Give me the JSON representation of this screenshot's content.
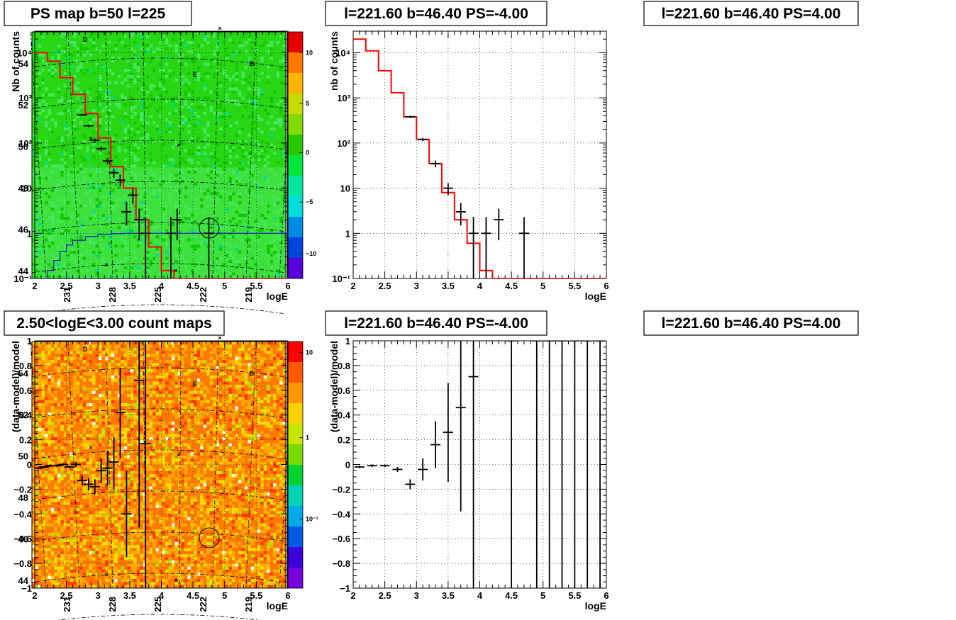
{
  "colors": {
    "model": "#ff0000",
    "data": "#000000",
    "ref": "#0000cc"
  },
  "chart_data": [
    {
      "type": "heatmap",
      "title": "PS map b=50 l=225",
      "x_ticks": [
        "231",
        "228",
        "225",
        "222",
        "219"
      ],
      "y_ticks": [
        "44",
        "46",
        "48",
        "50",
        "52",
        "54"
      ],
      "colorbar_ticks": [
        "10",
        "5",
        "0",
        "−5",
        "−10"
      ],
      "markers": [
        "D",
        "E",
        "B"
      ]
    },
    {
      "type": "line",
      "title": "l=221.60 b=46.40 PS=-4.00",
      "xlabel": "logE",
      "ylabel": "Nb of counts",
      "log_y": true,
      "xlim": [
        2,
        6
      ],
      "ylim": [
        0.1,
        30000
      ],
      "x_ticks": [
        "2",
        "2.5",
        "3",
        "3.5",
        "4",
        "4.5",
        "5",
        "5.5",
        "6"
      ],
      "y_ticks": [
        "10⁻¹",
        "1",
        "10",
        "10²",
        "10³",
        "10⁴"
      ],
      "series": [
        {
          "bins": [
            2.0,
            2.2,
            2.4,
            2.6,
            2.8,
            3.0,
            3.2,
            3.4,
            3.6,
            3.8,
            4.0,
            4.2,
            6.0
          ],
          "values": [
            10000,
            6500,
            2800,
            1200,
            450,
            130,
            30,
            10,
            2,
            0.5,
            0.15,
            0.1
          ]
        },
        {
          "x": [
            2.1,
            2.2,
            2.3,
            2.4,
            2.5,
            2.6,
            2.8,
            3.0,
            3.2,
            3.4,
            3.6,
            3.8,
            4.0,
            6.0
          ],
          "y": [
            0.1,
            0.15,
            0.25,
            0.4,
            0.55,
            0.7,
            0.85,
            0.95,
            0.98,
            1,
            1,
            1,
            1,
            1
          ]
        }
      ],
      "data_points": [
        {
          "x": 2.75,
          "y": 420,
          "lo": 400,
          "hi": 440
        },
        {
          "x": 2.85,
          "y": 240,
          "lo": 225,
          "hi": 255
        },
        {
          "x": 2.95,
          "y": 115,
          "lo": 105,
          "hi": 125
        },
        {
          "x": 3.05,
          "y": 75,
          "lo": 67,
          "hi": 84
        },
        {
          "x": 3.15,
          "y": 40,
          "lo": 34,
          "hi": 46
        },
        {
          "x": 3.25,
          "y": 22,
          "lo": 17,
          "hi": 27
        },
        {
          "x": 3.35,
          "y": 15,
          "lo": 11,
          "hi": 20
        },
        {
          "x": 3.45,
          "y": 3,
          "lo": 1.5,
          "hi": 5
        },
        {
          "x": 3.55,
          "y": 7,
          "lo": 4.5,
          "hi": 10
        },
        {
          "x": 3.65,
          "y": 2,
          "lo": 0.7,
          "hi": 3.5
        },
        {
          "x": 3.75,
          "y": 1,
          "lo": 0.1,
          "hi": 2.3
        },
        {
          "x": 4.15,
          "y": 1,
          "lo": 0.1,
          "hi": 2.3
        },
        {
          "x": 4.25,
          "y": 2,
          "lo": 0.7,
          "hi": 3.5
        },
        {
          "x": 4.75,
          "y": 1,
          "lo": 0.1,
          "hi": 2.3
        }
      ]
    },
    {
      "type": "line",
      "title": "l=221.60 b=46.40 PS=4.00",
      "xlabel": "logE",
      "ylabel": "nb of counts",
      "log_y": true,
      "xlim": [
        2,
        6
      ],
      "ylim": [
        0.1,
        30000
      ],
      "x_ticks": [
        "2",
        "2.5",
        "3",
        "3.5",
        "4",
        "4.5",
        "5",
        "5.5",
        "6"
      ],
      "y_ticks": [
        "10⁻¹",
        "1",
        "10",
        "10²",
        "10³",
        "10⁴"
      ],
      "series": [
        {
          "bins": [
            2.0,
            2.2,
            2.4,
            2.6,
            2.8,
            3.0,
            3.2,
            3.4,
            3.6,
            3.8,
            4.0,
            4.2,
            6.0
          ],
          "values": [
            20000,
            11000,
            4000,
            1300,
            380,
            120,
            35,
            8,
            2,
            0.6,
            0.15,
            0.1
          ]
        }
      ],
      "data_points": [
        {
          "x": 2.9,
          "y": 380,
          "lo": 360,
          "hi": 400
        },
        {
          "x": 3.1,
          "y": 120,
          "lo": 110,
          "hi": 130
        },
        {
          "x": 3.3,
          "y": 35,
          "lo": 29,
          "hi": 41
        },
        {
          "x": 3.5,
          "y": 10,
          "lo": 7,
          "hi": 13
        },
        {
          "x": 3.7,
          "y": 3,
          "lo": 1.5,
          "hi": 4.7
        },
        {
          "x": 3.9,
          "y": 1,
          "lo": 0.1,
          "hi": 2.3
        },
        {
          "x": 4.1,
          "y": 1,
          "lo": 0.1,
          "hi": 2.3
        },
        {
          "x": 4.3,
          "y": 2,
          "lo": 0.7,
          "hi": 3.5
        },
        {
          "x": 4.7,
          "y": 1,
          "lo": 0.1,
          "hi": 2.3
        }
      ]
    },
    {
      "type": "heatmap",
      "title": "2.50<logE<3.00 count maps",
      "x_ticks": [
        "231",
        "228",
        "225",
        "222",
        "219"
      ],
      "y_ticks": [
        "44",
        "46",
        "48",
        "50",
        "52",
        "54"
      ],
      "colorbar_ticks": [
        "10",
        "1",
        "10⁻¹"
      ],
      "markers": [
        "D",
        "E",
        "B"
      ]
    },
    {
      "type": "scatter",
      "title": "l=221.60 b=46.40 PS=-4.00",
      "xlabel": "logE",
      "ylabel": "(data-model)/model",
      "xlim": [
        2,
        6
      ],
      "ylim": [
        -1,
        1
      ],
      "x_ticks": [
        "2",
        "2.5",
        "3",
        "3.5",
        "4",
        "4.5",
        "5",
        "5.5",
        "6"
      ],
      "y_ticks": [
        "−1",
        "−0.8",
        "−0.6",
        "−0.4",
        "−0.2",
        "0",
        "0.2",
        "0.4",
        "0.6",
        "0.8",
        "1"
      ],
      "data_points": [
        {
          "x": 2.05,
          "y": -0.03,
          "lo": -0.04,
          "hi": -0.02
        },
        {
          "x": 2.15,
          "y": -0.02,
          "lo": -0.03,
          "hi": -0.01
        },
        {
          "x": 2.25,
          "y": -0.01,
          "lo": -0.02,
          "hi": 0.0
        },
        {
          "x": 2.35,
          "y": -0.01,
          "lo": -0.02,
          "hi": 0.0
        },
        {
          "x": 2.45,
          "y": 0.0,
          "lo": -0.01,
          "hi": 0.01
        },
        {
          "x": 2.55,
          "y": -0.02,
          "lo": -0.03,
          "hi": -0.01
        },
        {
          "x": 2.65,
          "y": 0.0,
          "lo": -0.02,
          "hi": 0.02
        },
        {
          "x": 2.75,
          "y": -0.13,
          "lo": -0.17,
          "hi": -0.09
        },
        {
          "x": 2.85,
          "y": -0.16,
          "lo": -0.21,
          "hi": -0.11
        },
        {
          "x": 2.95,
          "y": -0.18,
          "lo": -0.24,
          "hi": -0.12
        },
        {
          "x": 3.05,
          "y": -0.05,
          "lo": -0.15,
          "hi": 0.05
        },
        {
          "x": 3.15,
          "y": -0.03,
          "lo": -0.17,
          "hi": 0.11
        },
        {
          "x": 3.25,
          "y": 0.02,
          "lo": -0.2,
          "hi": 0.22
        },
        {
          "x": 3.35,
          "y": 0.42,
          "lo": 0.05,
          "hi": 0.78
        },
        {
          "x": 3.45,
          "y": -0.4,
          "lo": -0.75,
          "hi": -0.05
        },
        {
          "x": 3.65,
          "y": 0.68,
          "lo": -0.51,
          "hi": 1.0
        },
        {
          "x": 3.75,
          "y": 0.17,
          "lo": -1.0,
          "hi": 1.0
        }
      ]
    },
    {
      "type": "scatter",
      "title": "l=221.60 b=46.40 PS=4.00",
      "xlabel": "logE",
      "ylabel": "(data-model)/model",
      "xlim": [
        2,
        6
      ],
      "ylim": [
        -1,
        1
      ],
      "x_ticks": [
        "2",
        "2.5",
        "3",
        "3.5",
        "4",
        "4.5",
        "5",
        "5.5",
        "6"
      ],
      "y_ticks": [
        "−1",
        "−0.8",
        "−0.6",
        "−0.4",
        "−0.2",
        "0",
        "0.2",
        "0.4",
        "0.6",
        "0.8",
        "1"
      ],
      "data_points": [
        {
          "x": 2.1,
          "y": -0.02,
          "lo": -0.03,
          "hi": -0.01
        },
        {
          "x": 2.3,
          "y": -0.01,
          "lo": -0.02,
          "hi": 0.0
        },
        {
          "x": 2.5,
          "y": -0.01,
          "lo": -0.02,
          "hi": 0.0
        },
        {
          "x": 2.7,
          "y": -0.04,
          "lo": -0.06,
          "hi": -0.02
        },
        {
          "x": 2.9,
          "y": -0.16,
          "lo": -0.2,
          "hi": -0.12
        },
        {
          "x": 3.1,
          "y": -0.04,
          "lo": -0.13,
          "hi": 0.05
        },
        {
          "x": 3.3,
          "y": 0.16,
          "lo": -0.03,
          "hi": 0.35
        },
        {
          "x": 3.5,
          "y": 0.26,
          "lo": -0.14,
          "hi": 0.66
        },
        {
          "x": 3.7,
          "y": 0.46,
          "lo": -0.38,
          "hi": 1.0
        },
        {
          "x": 3.9,
          "y": 0.71,
          "lo": -1.0,
          "hi": 1.0
        },
        {
          "x": 4.5,
          "y": 1.0,
          "lo": -1.0,
          "hi": 1.0
        },
        {
          "x": 4.9,
          "y": 1.0,
          "lo": -1.0,
          "hi": 1.0
        },
        {
          "x": 5.1,
          "y": 1.0,
          "lo": -1.0,
          "hi": 1.0
        },
        {
          "x": 5.3,
          "y": 1.0,
          "lo": -1.0,
          "hi": 1.0
        },
        {
          "x": 5.5,
          "y": 1.0,
          "lo": -1.0,
          "hi": 1.0
        },
        {
          "x": 5.7,
          "y": 1.0,
          "lo": -1.0,
          "hi": 1.0
        },
        {
          "x": 5.9,
          "y": 1.0,
          "lo": -1.0,
          "hi": 1.0
        }
      ]
    }
  ]
}
